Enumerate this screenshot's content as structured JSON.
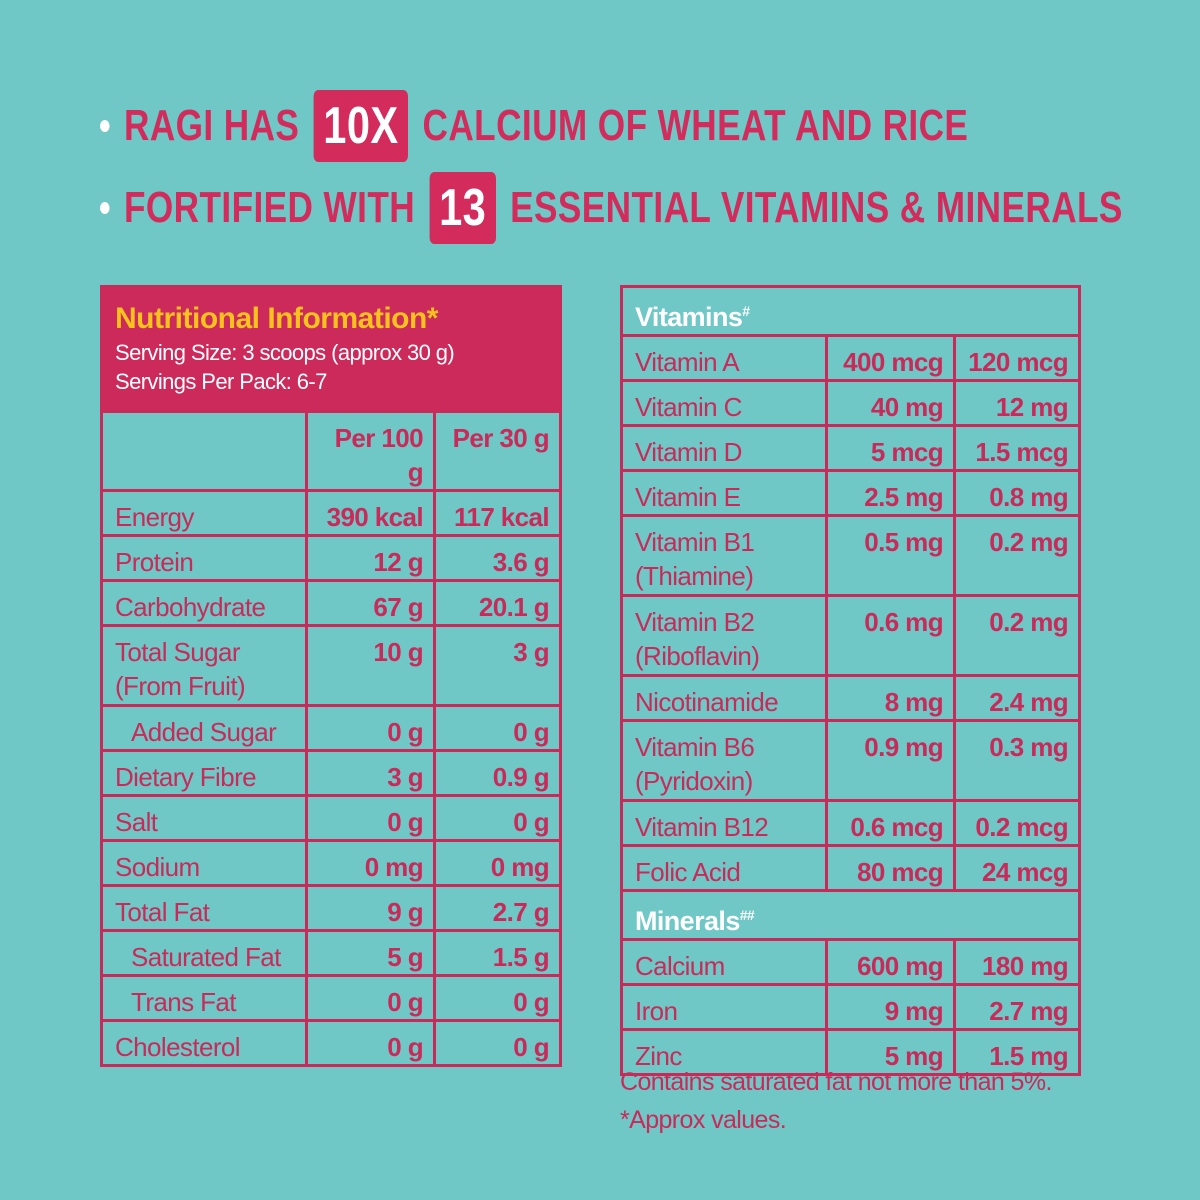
{
  "colors": {
    "background": "#6fc8c6",
    "accent": "#cc2a5b",
    "title_yellow": "#f9c21c",
    "white": "#ffffff"
  },
  "headlines": [
    {
      "before": "RAGI HAS",
      "badge": "10X",
      "after": "CALCIUM OF WHEAT AND RICE"
    },
    {
      "before": "FORTIFIED WITH",
      "badge": "13",
      "after": "ESSENTIAL VITAMINS & MINERALS"
    }
  ],
  "nutrition": {
    "title": "Nutritional Information*",
    "serving_size": "Serving Size: 3 scoops (approx 30 g)",
    "servings_per_pack": "Servings Per Pack: 6-7",
    "columns": [
      "",
      "Per 100 g",
      "Per 30 g"
    ],
    "rows": [
      {
        "label": "Energy",
        "per100": "390 kcal",
        "per30": "117 kcal"
      },
      {
        "label": "Protein",
        "per100": "12 g",
        "per30": "3.6 g"
      },
      {
        "label": "Carbohydrate",
        "per100": "67 g",
        "per30": "20.1 g"
      },
      {
        "label": "Total Sugar (From Fruit)",
        "per100": "10 g",
        "per30": "3 g",
        "tall": true
      },
      {
        "label": "Added Sugar",
        "per100": "0 g",
        "per30": "0 g",
        "indent": true
      },
      {
        "label": "Dietary Fibre",
        "per100": "3 g",
        "per30": "0.9 g"
      },
      {
        "label": "Salt",
        "per100": "0 g",
        "per30": "0 g"
      },
      {
        "label": "Sodium",
        "per100": "0 mg",
        "per30": "0 mg"
      },
      {
        "label": "Total Fat",
        "per100": "9 g",
        "per30": "2.7 g"
      },
      {
        "label": "Saturated Fat",
        "per100": "5 g",
        "per30": "1.5 g",
        "indent": true
      },
      {
        "label": "Trans Fat",
        "per100": "0 g",
        "per30": "0 g",
        "indent": true
      },
      {
        "label": "Cholesterol",
        "per100": "0 g",
        "per30": "0 g"
      }
    ]
  },
  "micronutrients": {
    "sections": [
      {
        "title": "Vitamins",
        "mark": "#",
        "rows": [
          {
            "label": "Vitamin A",
            "per100": "400 mcg",
            "per30": "120 mcg"
          },
          {
            "label": "Vitamin C",
            "per100": "40 mg",
            "per30": "12 mg"
          },
          {
            "label": "Vitamin D",
            "per100": "5 mcg",
            "per30": "1.5 mcg"
          },
          {
            "label": "Vitamin E",
            "per100": "2.5 mg",
            "per30": "0.8 mg"
          },
          {
            "label": "Vitamin B1 (Thiamine)",
            "per100": "0.5 mg",
            "per30": "0.2 mg",
            "tall": true
          },
          {
            "label": "Vitamin B2 (Riboflavin)",
            "per100": "0.6 mg",
            "per30": "0.2 mg",
            "tall": true
          },
          {
            "label": "Nicotinamide",
            "per100": "8 mg",
            "per30": "2.4 mg"
          },
          {
            "label": "Vitamin B6 (Pyridoxin)",
            "per100": "0.9 mg",
            "per30": "0.3 mg",
            "tall": true
          },
          {
            "label": "Vitamin B12",
            "per100": "0.6 mcg",
            "per30": "0.2 mcg"
          },
          {
            "label": "Folic Acid",
            "per100": "80 mcg",
            "per30": "24 mcg"
          }
        ]
      },
      {
        "title": "Minerals",
        "mark": "##",
        "rows": [
          {
            "label": "Calcium",
            "per100": "600 mg",
            "per30": "180 mg"
          },
          {
            "label": "Iron",
            "per100": "9 mg",
            "per30": "2.7 mg"
          },
          {
            "label": "Zinc",
            "per100": "5 mg",
            "per30": "1.5 mg"
          }
        ]
      }
    ]
  },
  "footnotes": [
    "Contains saturated fat not more than 5%.",
    "*Approx values."
  ]
}
